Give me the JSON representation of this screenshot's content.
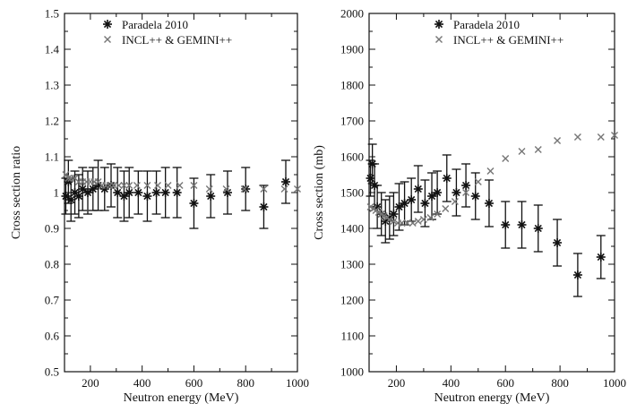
{
  "chart_data": [
    {
      "type": "scatter",
      "title": "",
      "xlabel": "Neutron energy (MeV)",
      "ylabel": "Cross section ratio",
      "xlim": [
        100,
        1000
      ],
      "ylim": [
        0.5,
        1.5
      ],
      "xticks": [
        200,
        400,
        600,
        800,
        1000
      ],
      "yticks": [
        0.5,
        0.6,
        0.7,
        0.8,
        0.9,
        1,
        1.1,
        1.2,
        1.3,
        1.4,
        1.5
      ],
      "ytick_labels": [
        "0.5",
        "0.6",
        "0.7",
        "0.8",
        "0.9",
        "1",
        "1.1",
        "1.2",
        "1.3",
        "1.4",
        "1.5"
      ],
      "grid": false,
      "legend_position": "top-right",
      "series": [
        {
          "name": "Paradela 2010",
          "marker": "asterisk",
          "x": [
            105,
            115,
            125,
            140,
            155,
            170,
            190,
            210,
            230,
            255,
            280,
            305,
            330,
            350,
            385,
            420,
            455,
            490,
            535,
            600,
            665,
            730,
            800,
            870,
            955
          ],
          "y": [
            0.99,
            1.03,
            0.98,
            1.0,
            0.99,
            1.01,
            1.0,
            1.01,
            1.02,
            1.01,
            1.02,
            1.0,
            0.99,
            1.0,
            1.0,
            0.99,
            1.0,
            1.0,
            1.0,
            0.97,
            0.99,
            1.0,
            1.01,
            0.96,
            1.03
          ],
          "yerr": [
            0.05,
            0.06,
            0.06,
            0.06,
            0.06,
            0.06,
            0.06,
            0.06,
            0.07,
            0.06,
            0.06,
            0.07,
            0.07,
            0.07,
            0.06,
            0.07,
            0.06,
            0.07,
            0.07,
            0.07,
            0.06,
            0.06,
            0.06,
            0.06,
            0.06
          ]
        },
        {
          "name": "INCL++ & GEMINI++",
          "marker": "x",
          "x": [
            105,
            115,
            125,
            140,
            155,
            170,
            185,
            200,
            215,
            230,
            245,
            260,
            275,
            290,
            310,
            330,
            350,
            380,
            420,
            460,
            500,
            545,
            600,
            660,
            725,
            795,
            870,
            950,
            1000
          ],
          "y": [
            1.05,
            1.04,
            1.04,
            1.04,
            1.03,
            1.03,
            1.03,
            1.03,
            1.03,
            1.03,
            1.02,
            1.02,
            1.02,
            1.02,
            1.02,
            1.02,
            1.02,
            1.02,
            1.02,
            1.02,
            1.02,
            1.02,
            1.02,
            1.01,
            1.01,
            1.01,
            1.01,
            1.01,
            1.01
          ]
        }
      ]
    },
    {
      "type": "scatter",
      "title": "",
      "xlabel": "Neutron energy (MeV)",
      "ylabel": "Cross section (mb)",
      "xlim": [
        100,
        1000
      ],
      "ylim": [
        1000,
        2000
      ],
      "xticks": [
        200,
        400,
        600,
        800,
        1000
      ],
      "yticks": [
        1000,
        1100,
        1200,
        1300,
        1400,
        1500,
        1600,
        1700,
        1800,
        1900,
        2000
      ],
      "ytick_labels": [
        "1000",
        "1100",
        "1200",
        "1300",
        "1400",
        "1500",
        "1600",
        "1700",
        "1800",
        "1900",
        "2000"
      ],
      "grid": false,
      "legend_position": "top-right",
      "series": [
        {
          "name": "Paradela 2010",
          "marker": "asterisk",
          "x": [
            105,
            112,
            120,
            130,
            145,
            160,
            175,
            190,
            210,
            230,
            255,
            280,
            305,
            330,
            350,
            385,
            420,
            455,
            490,
            540,
            600,
            660,
            720,
            790,
            865,
            950
          ],
          "y": [
            1540,
            1580,
            1520,
            1460,
            1440,
            1420,
            1430,
            1440,
            1460,
            1470,
            1480,
            1510,
            1470,
            1490,
            1500,
            1540,
            1500,
            1520,
            1490,
            1470,
            1410,
            1410,
            1400,
            1360,
            1270,
            1320
          ],
          "yerr": [
            50,
            55,
            60,
            60,
            60,
            60,
            60,
            60,
            65,
            60,
            60,
            65,
            65,
            65,
            60,
            65,
            65,
            60,
            65,
            65,
            65,
            65,
            65,
            65,
            60,
            60
          ]
        },
        {
          "name": "INCL++ & GEMINI++",
          "marker": "x",
          "x": [
            105,
            115,
            125,
            135,
            145,
            155,
            165,
            175,
            190,
            205,
            220,
            240,
            260,
            280,
            300,
            325,
            350,
            380,
            415,
            455,
            500,
            545,
            600,
            660,
            720,
            790,
            865,
            950,
            1000
          ],
          "y": [
            1460,
            1455,
            1450,
            1445,
            1440,
            1435,
            1430,
            1425,
            1420,
            1415,
            1415,
            1415,
            1415,
            1420,
            1425,
            1430,
            1440,
            1455,
            1475,
            1500,
            1530,
            1560,
            1595,
            1615,
            1620,
            1645,
            1655,
            1655,
            1660
          ]
        }
      ]
    }
  ]
}
